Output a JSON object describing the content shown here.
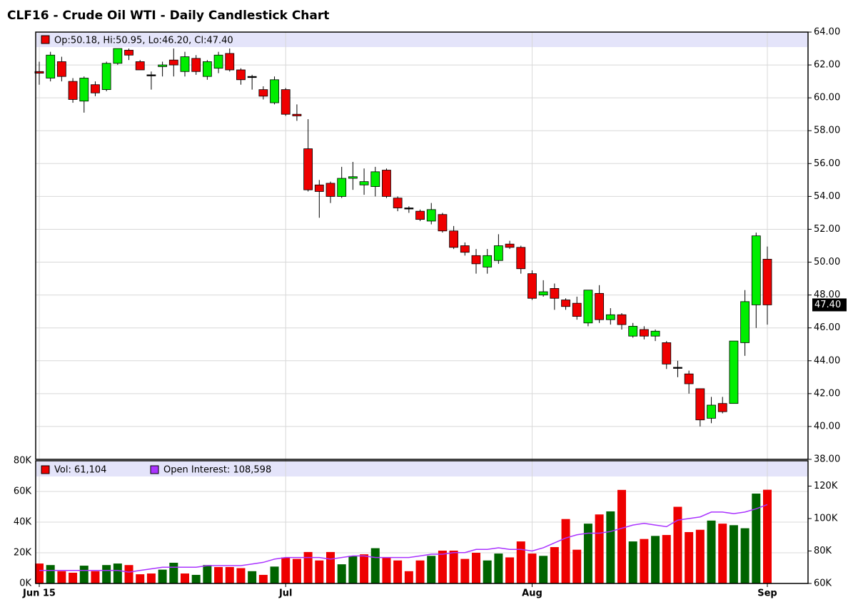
{
  "chart_data": {
    "type": "candlestick",
    "title": "CLF16 - Crude Oil WTI - Daily Candlestick Chart",
    "legend_text": "Op:50.18, Hi:50.95, Lo:46.20, Cl:47.40",
    "last_label": "47.40",
    "categories": [
      "Jun 15",
      null,
      null,
      null,
      null,
      null,
      null,
      null,
      null,
      null,
      null,
      null,
      null,
      null,
      null,
      null,
      null,
      null,
      null,
      null,
      null,
      null,
      "Jul",
      null,
      null,
      null,
      null,
      null,
      null,
      null,
      null,
      null,
      null,
      null,
      null,
      null,
      null,
      null,
      null,
      null,
      null,
      null,
      null,
      null,
      "Aug",
      null,
      null,
      null,
      null,
      null,
      null,
      null,
      null,
      null,
      null,
      null,
      null,
      null,
      null,
      null,
      null,
      null,
      null,
      null,
      null,
      "Sep"
    ],
    "open": [
      61.6,
      61.2,
      62.2,
      61.0,
      59.8,
      60.8,
      60.5,
      62.1,
      62.9,
      62.2,
      61.4,
      61.9,
      62.3,
      61.6,
      62.4,
      61.3,
      61.8,
      62.7,
      61.7,
      61.3,
      60.5,
      59.7,
      60.5,
      59.0,
      56.9,
      54.7,
      54.8,
      54.0,
      55.1,
      54.7,
      54.6,
      55.6,
      53.9,
      53.3,
      53.1,
      52.5,
      52.9,
      51.9,
      51.0,
      50.4,
      49.7,
      50.1,
      51.1,
      50.9,
      49.3,
      48.0,
      48.4,
      47.7,
      47.5,
      46.3,
      48.1,
      46.5,
      46.8,
      45.5,
      45.9,
      45.5,
      45.1,
      43.6,
      43.2,
      42.3,
      40.5,
      41.4,
      41.4,
      45.1,
      47.4,
      50.18
    ],
    "high": [
      62.2,
      62.8,
      62.5,
      61.2,
      61.3,
      61.0,
      62.2,
      63.0,
      63.0,
      62.3,
      61.6,
      62.2,
      63.0,
      62.8,
      62.6,
      62.3,
      62.8,
      63.0,
      61.8,
      61.4,
      60.7,
      61.3,
      60.6,
      59.6,
      58.7,
      55.0,
      54.9,
      55.8,
      56.1,
      55.7,
      55.8,
      55.7,
      54.0,
      53.4,
      53.2,
      53.6,
      53.0,
      52.2,
      51.2,
      50.8,
      50.8,
      51.7,
      51.3,
      51.0,
      49.5,
      48.9,
      48.7,
      47.8,
      47.9,
      48.3,
      48.6,
      47.2,
      46.9,
      46.3,
      46.1,
      45.9,
      45.2,
      44.0,
      43.4,
      42.3,
      41.8,
      41.8,
      45.2,
      48.3,
      51.8,
      50.95
    ],
    "low": [
      60.8,
      61.0,
      61.0,
      59.7,
      59.1,
      60.1,
      60.4,
      62.0,
      62.3,
      61.7,
      60.5,
      61.3,
      61.3,
      61.3,
      61.4,
      61.1,
      61.5,
      61.6,
      60.8,
      60.5,
      59.9,
      59.6,
      58.9,
      58.6,
      54.3,
      52.7,
      53.6,
      53.9,
      54.4,
      54.1,
      54.0,
      53.9,
      53.1,
      53.0,
      52.5,
      52.3,
      51.8,
      50.8,
      50.4,
      49.3,
      49.3,
      49.9,
      50.8,
      49.3,
      47.7,
      47.9,
      47.1,
      47.1,
      46.5,
      46.1,
      46.3,
      46.2,
      45.9,
      45.4,
      45.3,
      45.2,
      43.5,
      43.0,
      42.0,
      40.0,
      40.2,
      40.8,
      41.4,
      44.3,
      46.0,
      46.2
    ],
    "close": [
      61.5,
      62.6,
      61.3,
      59.9,
      61.2,
      60.3,
      62.1,
      63.0,
      62.6,
      61.7,
      61.4,
      62.0,
      62.0,
      62.5,
      61.6,
      62.2,
      62.6,
      61.7,
      61.1,
      61.3,
      60.1,
      61.1,
      59.0,
      58.9,
      54.4,
      54.3,
      54.0,
      55.1,
      55.2,
      54.9,
      55.5,
      54.0,
      53.3,
      53.3,
      52.6,
      53.2,
      51.9,
      50.9,
      50.6,
      49.9,
      50.4,
      51.0,
      50.9,
      49.6,
      47.8,
      48.2,
      47.8,
      47.3,
      46.7,
      48.3,
      46.5,
      46.8,
      46.2,
      46.1,
      45.5,
      45.8,
      43.8,
      43.6,
      42.6,
      40.4,
      41.3,
      40.9,
      45.2,
      47.6,
      51.6,
      47.4
    ],
    "up_color": "#00ee00",
    "down_color": "#ee0000",
    "doji_color": "#000000",
    "ylim": [
      38,
      64
    ],
    "yticks": [
      {
        "value": 38,
        "label": "38.00"
      },
      {
        "value": 40,
        "label": "40.00"
      },
      {
        "value": 42,
        "label": "42.00"
      },
      {
        "value": 44,
        "label": "44.00"
      },
      {
        "value": 46,
        "label": "46.00"
      },
      {
        "value": 48,
        "label": "48.00"
      },
      {
        "value": 50,
        "label": "50.00"
      },
      {
        "value": 52,
        "label": "52.00"
      },
      {
        "value": 54,
        "label": "54.00"
      },
      {
        "value": 56,
        "label": "56.00"
      },
      {
        "value": 58,
        "label": "58.00"
      },
      {
        "value": 60,
        "label": "60.00"
      },
      {
        "value": 62,
        "label": "62.00"
      },
      {
        "value": 64,
        "label": "64.00"
      }
    ],
    "grid": true,
    "volume": {
      "legend": "Vol: 61,104",
      "color": "#ee0000",
      "values": [
        13,
        12,
        8,
        7,
        11.6,
        8,
        12,
        13,
        12,
        6,
        6.5,
        9,
        13.5,
        6.5,
        5.6,
        12,
        10.7,
        10.7,
        10,
        8,
        5.6,
        11,
        17,
        16,
        20.5,
        15,
        20.5,
        12.5,
        18,
        19,
        23,
        17,
        15,
        8,
        15,
        18,
        21.4,
        21.4,
        16,
        20,
        15,
        19.5,
        17,
        27.4,
        19.5,
        18,
        23.7,
        42,
        22,
        39,
        45,
        47,
        61,
        27.4,
        29,
        31,
        31.6,
        50,
        33.5,
        35,
        41,
        39,
        38,
        36,
        58.6,
        61.104
      ],
      "colors": [
        "#ee0000",
        "#006400",
        "#ee0000",
        "#ee0000",
        "#006400",
        "#ee0000",
        "#006400",
        "#006400",
        "#ee0000",
        "#ee0000",
        "#ee0000",
        "#006400",
        "#006400",
        "#ee0000",
        "#006400",
        "#006400",
        "#ee0000",
        "#ee0000",
        "#ee0000",
        "#006400",
        "#ee0000",
        "#006400",
        "#ee0000",
        "#ee0000",
        "#ee0000",
        "#ee0000",
        "#ee0000",
        "#006400",
        "#006400",
        "#ee0000",
        "#006400",
        "#ee0000",
        "#ee0000",
        "#ee0000",
        "#ee0000",
        "#006400",
        "#ee0000",
        "#ee0000",
        "#ee0000",
        "#ee0000",
        "#006400",
        "#006400",
        "#ee0000",
        "#ee0000",
        "#ee0000",
        "#006400",
        "#ee0000",
        "#ee0000",
        "#ee0000",
        "#006400",
        "#ee0000",
        "#006400",
        "#ee0000",
        "#006400",
        "#ee0000",
        "#006400",
        "#ee0000",
        "#ee0000",
        "#ee0000",
        "#ee0000",
        "#006400",
        "#ee0000",
        "#006400",
        "#006400",
        "#006400",
        "#ee0000"
      ],
      "ylim": [
        0,
        80
      ],
      "yticks": [
        {
          "value": 0,
          "label": "0K"
        },
        {
          "value": 20,
          "label": "20K"
        },
        {
          "value": 40,
          "label": "40K"
        },
        {
          "value": 60,
          "label": "60K"
        },
        {
          "value": 80,
          "label": "80K"
        }
      ]
    },
    "open_interest": {
      "legend": "Open Interest: 108,598",
      "color": "#aa33ff",
      "values": [
        68,
        68,
        68,
        68,
        68,
        68,
        68,
        68,
        67,
        68,
        69,
        70,
        70,
        70,
        70,
        71,
        71,
        71,
        71,
        72,
        73,
        75,
        76,
        76,
        76,
        76,
        75,
        76,
        77,
        77,
        76,
        76,
        76,
        76,
        77,
        78,
        78,
        79,
        79,
        81,
        81,
        82,
        81,
        81,
        80,
        82,
        85,
        88,
        90,
        91,
        91,
        92,
        94,
        96,
        97,
        96,
        95,
        99,
        100,
        101,
        104,
        104,
        103,
        104,
        106,
        108.598
      ],
      "ylim": [
        60,
        135.6
      ],
      "yticks": [
        {
          "value": 60,
          "label": "60K"
        },
        {
          "value": 80,
          "label": "80K"
        },
        {
          "value": 100,
          "label": "100K"
        },
        {
          "value": 120,
          "label": "120K"
        }
      ]
    }
  }
}
